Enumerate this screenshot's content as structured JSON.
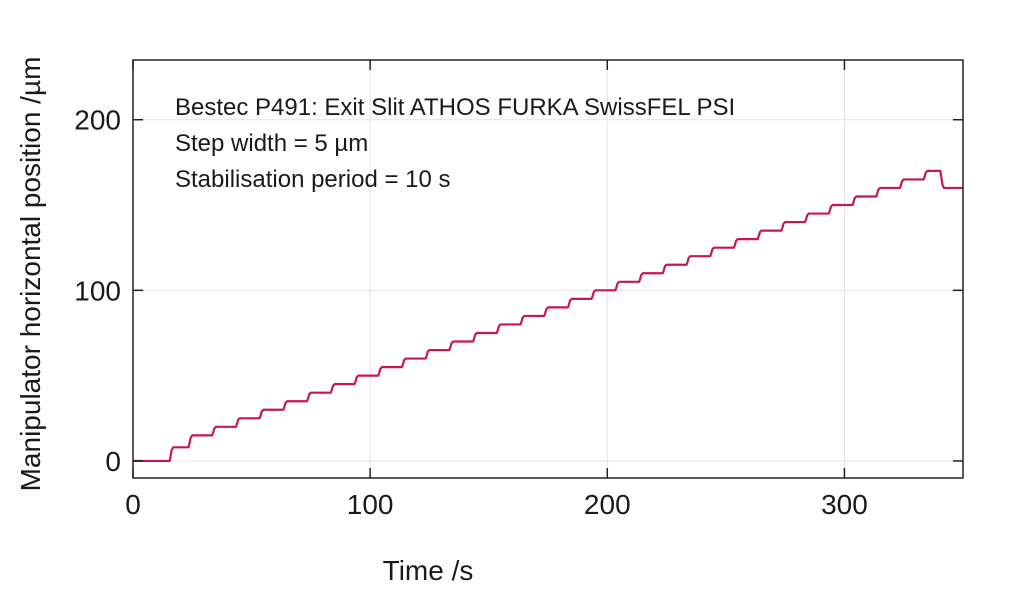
{
  "chart_data": {
    "type": "line",
    "xlabel": "Time /s",
    "ylabel": "Manipulator horizontal position /µm",
    "xlim": [
      0,
      350
    ],
    "ylim": [
      -10,
      235
    ],
    "x_ticks": [
      0,
      100,
      200,
      300
    ],
    "y_ticks": [
      0,
      100,
      200
    ],
    "grid": true,
    "annotations": [
      "Bestec P491: Exit Slit ATHOS FURKA SwissFEL PSI",
      "Step width = 5 µm",
      "Stabilisation period = 10 s"
    ],
    "series": [
      {
        "color": "#c8174f",
        "step_width": 5,
        "step_period_s": 10,
        "x": [
          0,
          15,
          17,
          25,
          35,
          45,
          55,
          65,
          75,
          85,
          95,
          105,
          115,
          125,
          135,
          145,
          155,
          165,
          175,
          185,
          195,
          205,
          215,
          225,
          235,
          245,
          255,
          265,
          275,
          285,
          295,
          305,
          315,
          325,
          335,
          342,
          350
        ],
        "y": [
          0,
          0,
          8,
          15,
          20,
          25,
          30,
          35,
          40,
          45,
          50,
          55,
          60,
          65,
          70,
          75,
          80,
          85,
          90,
          95,
          100,
          105,
          110,
          115,
          120,
          125,
          130,
          135,
          140,
          145,
          150,
          155,
          160,
          165,
          170,
          160,
          160
        ]
      }
    ]
  }
}
